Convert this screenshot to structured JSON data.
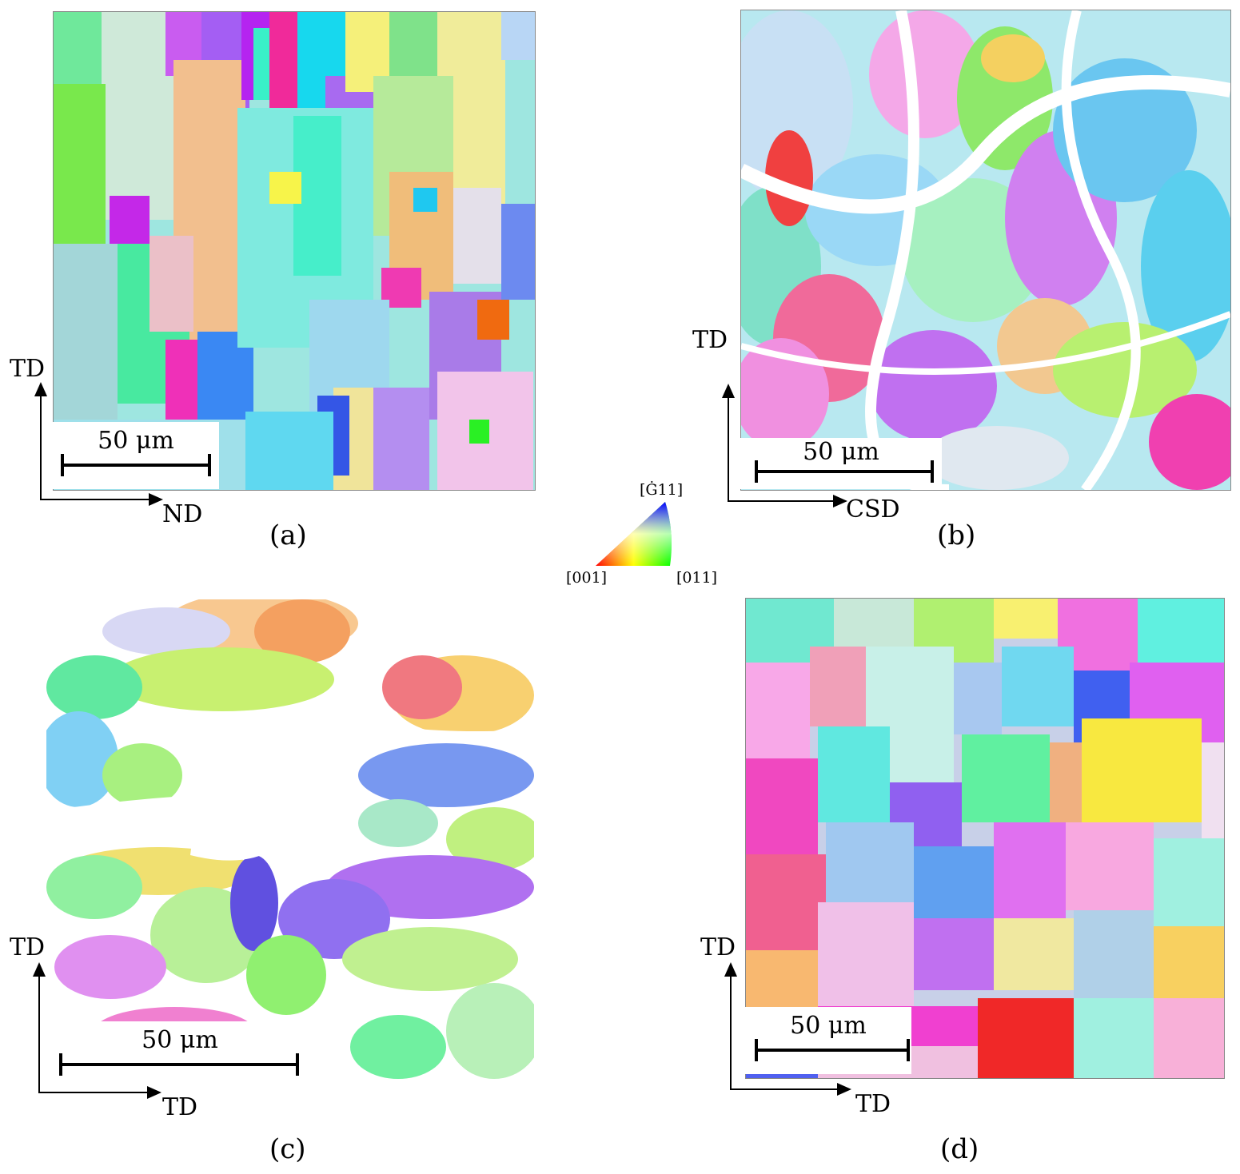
{
  "legend": {
    "corner_top": "[Ġ11]",
    "corner_left": "[001]",
    "corner_right": "[011]"
  },
  "panels": {
    "a": {
      "caption": "(a)",
      "scale": "50 μm",
      "axis_vertical": "TD",
      "axis_horizontal": "ND"
    },
    "b": {
      "caption": "(b)",
      "scale": "50 μm",
      "axis_vertical": "TD",
      "axis_horizontal": "CSD"
    },
    "c": {
      "caption": "(c)",
      "scale": "50 μm",
      "axis_vertical": "TD",
      "axis_horizontal": "TD"
    },
    "d": {
      "caption": "(d)",
      "scale": "50 μm",
      "axis_vertical": "TD",
      "axis_horizontal": "TD"
    }
  }
}
